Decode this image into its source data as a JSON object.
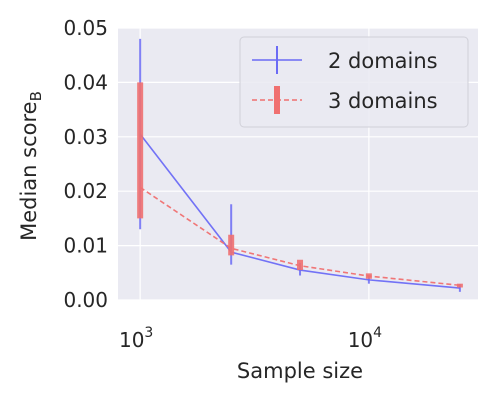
{
  "chart_data": {
    "type": "line",
    "xlabel": "Sample size",
    "ylabel_main": "Median score",
    "ylabel_sub": "B",
    "xscale": "log",
    "xlim": [
      800,
      30000
    ],
    "ylim": [
      0,
      0.05
    ],
    "yticks": [
      "0.00",
      "0.01",
      "0.02",
      "0.03",
      "0.04",
      "0.05"
    ],
    "xticks": [
      {
        "base": "10",
        "exp": "3",
        "value": 1000
      },
      {
        "base": "10",
        "exp": "4",
        "value": 10000
      }
    ],
    "grid": true,
    "legend_position": "top-right",
    "series": [
      {
        "name": "2 domains",
        "color": "#6b6bf5",
        "style": "solid",
        "x": [
          1000,
          2500,
          5000,
          10000,
          25000
        ],
        "y": [
          0.0305,
          0.0088,
          0.0055,
          0.0037,
          0.0022
        ],
        "err_low": [
          0.013,
          0.0065,
          0.0045,
          0.003,
          0.0015
        ],
        "err_high": [
          0.048,
          0.0176,
          0.0068,
          0.0045,
          0.0029
        ]
      },
      {
        "name": "3 domains",
        "color": "#f07070",
        "style": "dashed",
        "x": [
          1000,
          2500,
          5000,
          10000,
          25000
        ],
        "y": [
          0.0207,
          0.0095,
          0.0063,
          0.0044,
          0.0027
        ],
        "err_low": [
          0.015,
          0.0082,
          0.0055,
          0.0039,
          0.0023
        ],
        "err_high": [
          0.04,
          0.012,
          0.0074,
          0.0049,
          0.003
        ]
      }
    ]
  }
}
